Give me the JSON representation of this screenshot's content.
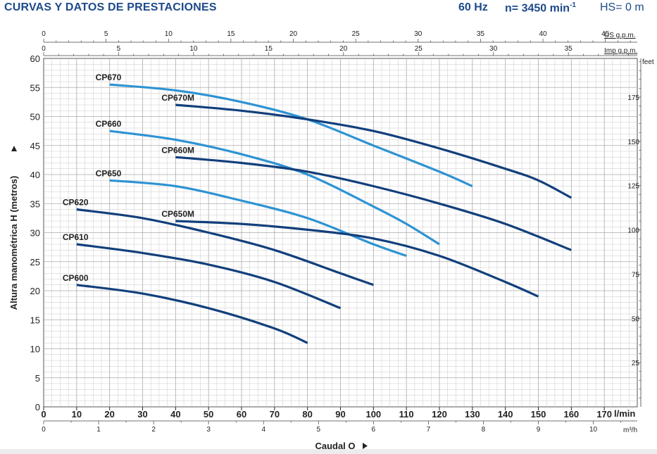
{
  "header": {
    "title": "CURVAS Y DATOS DE PRESTACIONES",
    "freq": "60 Hz",
    "speed_prefix": "n= 3450 min",
    "speed_sup": "-1",
    "hs": "HS= 0 m"
  },
  "colors": {
    "dark": "#123f7c",
    "light": "#2e93d3",
    "grid": "#bdbdbd",
    "text": "#222222"
  },
  "chart_data": {
    "type": "line",
    "xlabel": "Caudal Q",
    "ylabel": "Altura manométrica H (metros)",
    "x_unit": "l/min",
    "xlim": [
      0,
      180
    ],
    "ylim": [
      0,
      60
    ],
    "x_ticks": [
      0,
      10,
      20,
      30,
      40,
      50,
      60,
      70,
      80,
      90,
      100,
      110,
      120,
      130,
      140,
      150,
      160,
      170
    ],
    "y_ticks": [
      0,
      5,
      10,
      15,
      20,
      25,
      30,
      35,
      40,
      45,
      50,
      55,
      60
    ],
    "grid": true,
    "axes_secondary": {
      "us_gpm": {
        "label": "US g.p.m.",
        "ticks": [
          0,
          5,
          10,
          15,
          20,
          25,
          30,
          35,
          40,
          45
        ]
      },
      "imp_gpm": {
        "label": "Imp g.p.m.",
        "ticks": [
          0,
          5,
          10,
          15,
          20,
          25,
          30,
          35
        ]
      },
      "feet": {
        "label": "feet",
        "ticks": [
          25,
          50,
          75,
          100,
          125,
          150,
          175
        ]
      },
      "m3h": {
        "label": "m³/h",
        "ticks": [
          0,
          1,
          2,
          3,
          4,
          5,
          6,
          7,
          8,
          9,
          10
        ]
      }
    },
    "series": [
      {
        "name": "CP670",
        "color": "light",
        "x": [
          20,
          40,
          60,
          80,
          100,
          120,
          130
        ],
        "y": [
          55.5,
          54.5,
          52.5,
          49.5,
          45,
          40.5,
          38
        ]
      },
      {
        "name": "CP670M",
        "color": "dark",
        "x": [
          40,
          60,
          80,
          100,
          120,
          140,
          150,
          160
        ],
        "y": [
          52,
          51,
          49.5,
          47.5,
          44.5,
          41,
          39,
          36
        ]
      },
      {
        "name": "CP660",
        "color": "light",
        "x": [
          20,
          40,
          60,
          80,
          100,
          110,
          120
        ],
        "y": [
          47.5,
          46,
          43.5,
          40,
          34.5,
          31.5,
          28
        ]
      },
      {
        "name": "CP660M",
        "color": "dark",
        "x": [
          40,
          60,
          80,
          100,
          120,
          140,
          160
        ],
        "y": [
          43,
          42,
          40.5,
          38,
          35,
          31.5,
          27
        ]
      },
      {
        "name": "CP650",
        "color": "light",
        "x": [
          20,
          40,
          60,
          80,
          100,
          110
        ],
        "y": [
          39,
          38,
          35.5,
          32.5,
          28,
          26
        ]
      },
      {
        "name": "CP650M",
        "color": "dark",
        "x": [
          40,
          60,
          80,
          100,
          120,
          140,
          150
        ],
        "y": [
          32,
          31.5,
          30.5,
          29,
          26,
          21.5,
          19
        ]
      },
      {
        "name": "CP620",
        "color": "dark",
        "x": [
          10,
          30,
          50,
          70,
          90,
          100
        ],
        "y": [
          34,
          32.5,
          30,
          27,
          23,
          21
        ]
      },
      {
        "name": "CP610",
        "color": "dark",
        "x": [
          10,
          30,
          50,
          70,
          90
        ],
        "y": [
          28,
          26.5,
          24.5,
          21.5,
          17
        ]
      },
      {
        "name": "CP600",
        "color": "dark",
        "x": [
          10,
          30,
          50,
          70,
          80
        ],
        "y": [
          21,
          19.5,
          17,
          13.5,
          11
        ]
      }
    ]
  }
}
